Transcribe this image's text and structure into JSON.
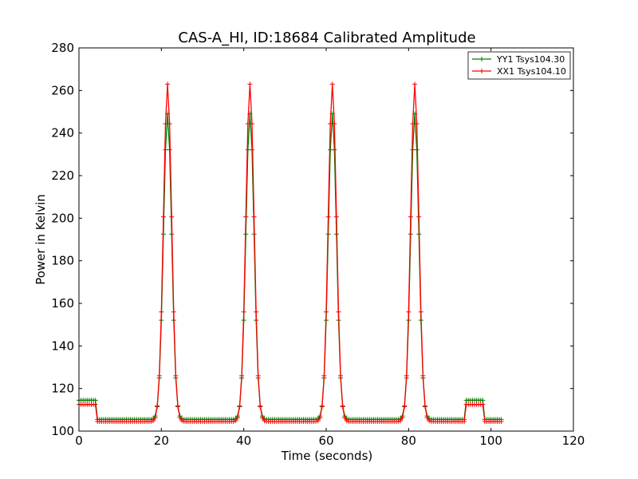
{
  "chart_data": {
    "type": "line",
    "title": "CAS-A_HI, ID:18684 Calibrated Amplitude",
    "xlabel": "Time (seconds)",
    "ylabel": "Power in Kelvin",
    "xlim": [
      0,
      120
    ],
    "ylim": [
      100,
      280
    ],
    "xticks": [
      0,
      20,
      40,
      60,
      80,
      100,
      120
    ],
    "yticks": [
      100,
      120,
      140,
      160,
      180,
      200,
      220,
      240,
      260,
      280
    ],
    "grid": false,
    "legend_position": "top-right",
    "peaks": [
      21.5,
      41.5,
      61.5,
      81.5
    ],
    "series": [
      {
        "name": "YY1 Tsys104.30",
        "color": "#008000",
        "baseline": 105.5,
        "cal_on_level": 114.5,
        "peak_value": 249
      },
      {
        "name": "XX1 Tsys104.10",
        "color": "#ff0000",
        "baseline": 104.5,
        "cal_on_level": 112.5,
        "peak_value": 263
      }
    ],
    "cal_on_intervals": [
      [
        0,
        4
      ],
      [
        94,
        98
      ]
    ],
    "data_end": 102.5
  }
}
